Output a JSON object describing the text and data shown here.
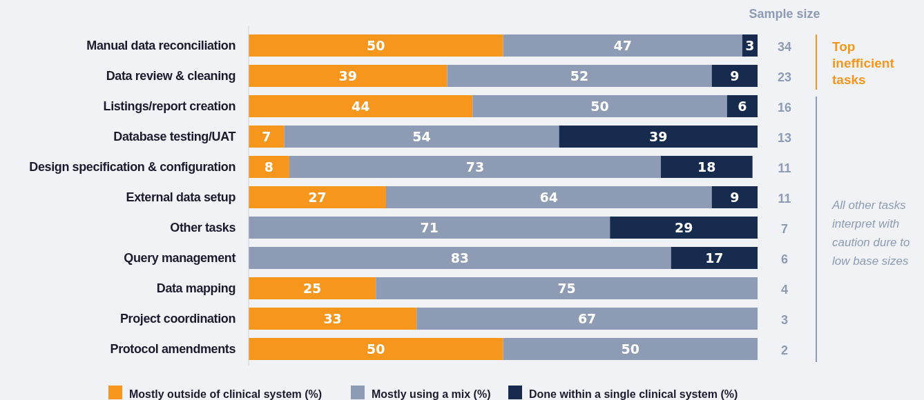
{
  "chart_data": {
    "type": "bar",
    "orientation": "horizontal",
    "stacked": true,
    "data_labels": true,
    "legend": "bottom",
    "categories": [
      "Manual data reconciliation",
      "Data review & cleaning",
      "Listings/report creation",
      "Database testing/UAT",
      "Design specification & configuration",
      "External data setup",
      "Other tasks",
      "Query management",
      "Data mapping",
      "Project coordination",
      "Protocol amendments"
    ],
    "series": [
      {
        "name": "Mostly outside of clinical system (%)",
        "color": "#f7961d",
        "values": [
          50,
          39,
          44,
          7,
          8,
          27,
          null,
          null,
          25,
          33,
          50
        ]
      },
      {
        "name": "Mostly using a mix (%)",
        "color": "#8e9bb5",
        "values": [
          47,
          52,
          50,
          54,
          73,
          64,
          71,
          83,
          75,
          67,
          50
        ]
      },
      {
        "name": "Done within a single clinical system (%)",
        "color": "#172b4f",
        "values": [
          3,
          9,
          6,
          39,
          18,
          9,
          29,
          17,
          null,
          null,
          null
        ]
      }
    ],
    "annotations": [
      "Sample size",
      "34",
      "23",
      "16",
      "13",
      "11",
      "11",
      "7",
      "6",
      "4",
      "3",
      "2",
      "Top inefficient tasks",
      "All other tasks interpret with caution dure to low base sizes"
    ]
  }
}
